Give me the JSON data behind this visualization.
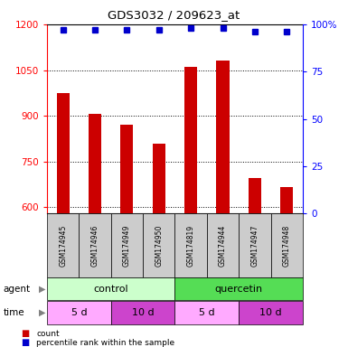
{
  "title": "GDS3032 / 209623_at",
  "samples": [
    "GSM174945",
    "GSM174946",
    "GSM174949",
    "GSM174950",
    "GSM174819",
    "GSM174944",
    "GSM174947",
    "GSM174948"
  ],
  "counts": [
    975,
    905,
    870,
    810,
    1060,
    1080,
    695,
    665
  ],
  "percentiles": [
    97,
    97,
    97,
    97,
    98,
    98,
    96,
    96
  ],
  "ylim_left": [
    580,
    1200
  ],
  "ylim_right": [
    0,
    100
  ],
  "yticks_left": [
    600,
    750,
    900,
    1050,
    1200
  ],
  "yticks_right": [
    0,
    25,
    50,
    75,
    100
  ],
  "bar_color": "#cc0000",
  "dot_color": "#0000cc",
  "bar_width": 0.4,
  "agent_control_color": "#ccffcc",
  "agent_quercetin_color": "#55dd55",
  "time_5d_color": "#ffaaff",
  "time_10d_color": "#cc44cc",
  "sample_bg_color": "#cccccc",
  "agent_label": "agent",
  "time_label": "time",
  "agent_groups": [
    {
      "label": "control",
      "start": 0,
      "end": 4,
      "color": "#ccffcc"
    },
    {
      "label": "quercetin",
      "start": 4,
      "end": 8,
      "color": "#55dd55"
    }
  ],
  "time_groups": [
    {
      "label": "5 d",
      "start": 0,
      "end": 2,
      "color": "#ffaaff"
    },
    {
      "label": "10 d",
      "start": 2,
      "end": 4,
      "color": "#cc44cc"
    },
    {
      "label": "5 d",
      "start": 4,
      "end": 6,
      "color": "#ffaaff"
    },
    {
      "label": "10 d",
      "start": 6,
      "end": 8,
      "color": "#cc44cc"
    }
  ],
  "legend_count_label": "count",
  "legend_percentile_label": "percentile rank within the sample"
}
